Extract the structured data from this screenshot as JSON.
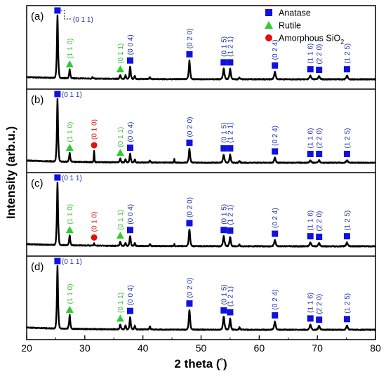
{
  "chart_data": {
    "type": "line",
    "xlabel": "2 theta (°)",
    "ylabel": "Intensity (arb.u.)",
    "xlim": [
      20,
      80
    ],
    "xticks": [
      20,
      30,
      40,
      50,
      60,
      70,
      80
    ],
    "yticks_shown": false,
    "legend": {
      "placement": "top-right",
      "entries": [
        {
          "label": "Anatase",
          "marker": "square",
          "color": "#1010e0"
        },
        {
          "label": "Rutile",
          "marker": "triangle",
          "color": "#2ecc2e"
        },
        {
          "label": "Amorphous SiO",
          "subscript": "2",
          "marker": "circle",
          "color": "#e01010"
        }
      ]
    },
    "panels": [
      {
        "tag": "(a)",
        "peaks": [
          {
            "x": 25.3,
            "h": 1.0,
            "w": 0.22,
            "phase": "anatase",
            "label": "(0 1 1)",
            "side": true
          },
          {
            "x": 27.4,
            "h": 0.14,
            "w": 0.22,
            "phase": "rutile",
            "label": "(1 1 0)"
          },
          {
            "x": 31.3,
            "h": 0.02,
            "w": 0.2,
            "phase": null
          },
          {
            "x": 36.1,
            "h": 0.06,
            "w": 0.22,
            "phase": "rutile",
            "label": "(0 1 1)"
          },
          {
            "x": 37.0,
            "h": 0.06,
            "w": 0.2,
            "phase": null
          },
          {
            "x": 37.8,
            "h": 0.2,
            "w": 0.22,
            "phase": "anatase",
            "label": "(0 0 4)"
          },
          {
            "x": 38.6,
            "h": 0.05,
            "w": 0.2,
            "phase": null
          },
          {
            "x": 41.2,
            "h": 0.03,
            "w": 0.2,
            "phase": null
          },
          {
            "x": 48.0,
            "h": 0.3,
            "w": 0.25,
            "phase": "anatase",
            "label": "(0 2 0)"
          },
          {
            "x": 53.9,
            "h": 0.17,
            "w": 0.28,
            "phase": "anatase",
            "label": "(0 1 5)"
          },
          {
            "x": 55.0,
            "h": 0.17,
            "w": 0.25,
            "phase": "anatase",
            "label": "(1 2 1)"
          },
          {
            "x": 56.6,
            "h": 0.03,
            "w": 0.2,
            "phase": null
          },
          {
            "x": 62.7,
            "h": 0.12,
            "w": 0.3,
            "phase": "anatase",
            "label": "(0 2 4)"
          },
          {
            "x": 68.8,
            "h": 0.06,
            "w": 0.3,
            "phase": "anatase",
            "label": "(1 1 6)"
          },
          {
            "x": 70.3,
            "h": 0.05,
            "w": 0.3,
            "phase": "anatase",
            "label": "(2 2 0)"
          },
          {
            "x": 75.1,
            "h": 0.06,
            "w": 0.3,
            "phase": "anatase",
            "label": "(1 2 5)"
          }
        ]
      },
      {
        "tag": "(b)",
        "peaks": [
          {
            "x": 25.3,
            "h": 1.0,
            "w": 0.22,
            "phase": "anatase",
            "label": "(0 1 1)",
            "side": true
          },
          {
            "x": 27.4,
            "h": 0.14,
            "w": 0.22,
            "phase": "rutile",
            "label": "(1 1 0)"
          },
          {
            "x": 31.6,
            "h": 0.18,
            "w": 0.12,
            "phase": "sio2",
            "label": "(0 1 0)"
          },
          {
            "x": 36.1,
            "h": 0.06,
            "w": 0.22,
            "phase": "rutile",
            "label": "(0 1 1)"
          },
          {
            "x": 37.0,
            "h": 0.05,
            "w": 0.2,
            "phase": null
          },
          {
            "x": 37.8,
            "h": 0.14,
            "w": 0.22,
            "phase": "anatase",
            "label": "(0 0 4)"
          },
          {
            "x": 38.6,
            "h": 0.05,
            "w": 0.2,
            "phase": null
          },
          {
            "x": 41.2,
            "h": 0.03,
            "w": 0.2,
            "phase": null
          },
          {
            "x": 45.4,
            "h": 0.06,
            "w": 0.12,
            "phase": null
          },
          {
            "x": 48.0,
            "h": 0.22,
            "w": 0.25,
            "phase": "anatase",
            "label": "(0 2 0)"
          },
          {
            "x": 53.9,
            "h": 0.13,
            "w": 0.28,
            "phase": "anatase",
            "label": "(0 1 5)"
          },
          {
            "x": 55.0,
            "h": 0.13,
            "w": 0.25,
            "phase": "anatase",
            "label": "(1 2 1)"
          },
          {
            "x": 56.6,
            "h": 0.03,
            "w": 0.2,
            "phase": null
          },
          {
            "x": 62.7,
            "h": 0.08,
            "w": 0.3,
            "phase": "anatase",
            "label": "(0 2 4)"
          },
          {
            "x": 68.8,
            "h": 0.04,
            "w": 0.3,
            "phase": "anatase",
            "label": "(1 1 6)"
          },
          {
            "x": 70.3,
            "h": 0.04,
            "w": 0.3,
            "phase": "anatase",
            "label": "(2 2 0)"
          },
          {
            "x": 75.1,
            "h": 0.04,
            "w": 0.3,
            "phase": "anatase",
            "label": "(1 2 5)"
          }
        ]
      },
      {
        "tag": "(c)",
        "peaks": [
          {
            "x": 25.3,
            "h": 1.0,
            "w": 0.22,
            "phase": "anatase",
            "label": "(0 1 1)",
            "side": true
          },
          {
            "x": 27.4,
            "h": 0.16,
            "w": 0.22,
            "phase": "rutile",
            "label": "(1 1 0)"
          },
          {
            "x": 31.6,
            "h": 0.04,
            "w": 0.12,
            "phase": "sio2",
            "label": "(0 1 0)"
          },
          {
            "x": 36.1,
            "h": 0.07,
            "w": 0.22,
            "phase": "rutile",
            "label": "(0 1 1)"
          },
          {
            "x": 37.0,
            "h": 0.05,
            "w": 0.2,
            "phase": null
          },
          {
            "x": 37.8,
            "h": 0.16,
            "w": 0.22,
            "phase": "anatase",
            "label": "(0 0 4)"
          },
          {
            "x": 38.6,
            "h": 0.05,
            "w": 0.2,
            "phase": null
          },
          {
            "x": 41.2,
            "h": 0.03,
            "w": 0.2,
            "phase": null
          },
          {
            "x": 45.4,
            "h": 0.03,
            "w": 0.12,
            "phase": null
          },
          {
            "x": 48.0,
            "h": 0.27,
            "w": 0.25,
            "phase": "anatase",
            "label": "(0 2 0)"
          },
          {
            "x": 53.9,
            "h": 0.16,
            "w": 0.28,
            "phase": "anatase",
            "label": "(0 1 5)"
          },
          {
            "x": 55.0,
            "h": 0.15,
            "w": 0.25,
            "phase": "anatase",
            "label": "(1 2 1)"
          },
          {
            "x": 56.6,
            "h": 0.03,
            "w": 0.2,
            "phase": null
          },
          {
            "x": 62.7,
            "h": 0.1,
            "w": 0.3,
            "phase": "anatase",
            "label": "(0 2 4)"
          },
          {
            "x": 68.8,
            "h": 0.06,
            "w": 0.3,
            "phase": "anatase",
            "label": "(1 1 6)"
          },
          {
            "x": 70.3,
            "h": 0.05,
            "w": 0.3,
            "phase": "anatase",
            "label": "(2 2 0)"
          },
          {
            "x": 75.1,
            "h": 0.06,
            "w": 0.3,
            "phase": "anatase",
            "label": "(1 2 5)"
          }
        ]
      },
      {
        "tag": "(d)",
        "peaks": [
          {
            "x": 25.3,
            "h": 1.0,
            "w": 0.22,
            "phase": "anatase",
            "label": "(0 1 1)",
            "side": true
          },
          {
            "x": 27.4,
            "h": 0.22,
            "w": 0.22,
            "phase": "rutile",
            "label": "(1 1 0)"
          },
          {
            "x": 36.1,
            "h": 0.08,
            "w": 0.22,
            "phase": "rutile",
            "label": "(0 1 1)"
          },
          {
            "x": 37.0,
            "h": 0.07,
            "w": 0.2,
            "phase": null
          },
          {
            "x": 37.8,
            "h": 0.2,
            "w": 0.22,
            "phase": "anatase",
            "label": "(0 0 4)"
          },
          {
            "x": 38.6,
            "h": 0.06,
            "w": 0.2,
            "phase": null
          },
          {
            "x": 41.2,
            "h": 0.05,
            "w": 0.2,
            "phase": null
          },
          {
            "x": 48.0,
            "h": 0.32,
            "w": 0.25,
            "phase": "anatase",
            "label": "(0 2 0)"
          },
          {
            "x": 53.9,
            "h": 0.21,
            "w": 0.28,
            "phase": "anatase",
            "label": "(0 1 5)"
          },
          {
            "x": 55.0,
            "h": 0.18,
            "w": 0.25,
            "phase": "anatase",
            "label": "(1 2 1)"
          },
          {
            "x": 56.6,
            "h": 0.04,
            "w": 0.2,
            "phase": null
          },
          {
            "x": 62.7,
            "h": 0.13,
            "w": 0.3,
            "phase": "anatase",
            "label": "(0 2 4)"
          },
          {
            "x": 68.8,
            "h": 0.08,
            "w": 0.3,
            "phase": "anatase",
            "label": "(1 1 6)"
          },
          {
            "x": 70.3,
            "h": 0.06,
            "w": 0.3,
            "phase": "anatase",
            "label": "(2 2 0)"
          },
          {
            "x": 75.1,
            "h": 0.07,
            "w": 0.3,
            "phase": "anatase",
            "label": "(1 2 5)"
          }
        ]
      }
    ],
    "phase_colors": {
      "anatase": "#1010e0",
      "rutile": "#2ecc2e",
      "sio2": "#e01010",
      "anatase_label": "#1a2fb0",
      "rutile_label": "#3ac03a",
      "sio2_label": "#e01010"
    }
  }
}
